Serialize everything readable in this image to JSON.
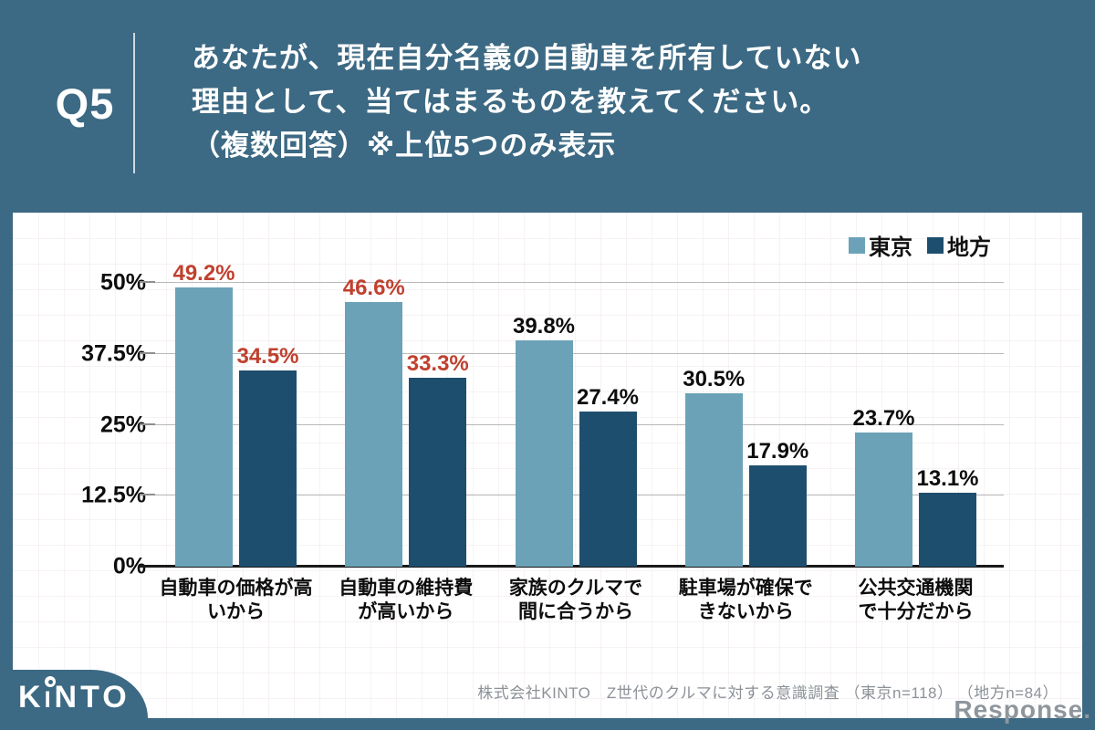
{
  "header": {
    "question_number": "Q5",
    "title_lines": [
      "あなたが、現在自分名義の自動車を所有していない",
      "理由として、当てはまるものを教えてください。",
      "（複数回答）※上位5つのみ表示"
    ]
  },
  "chart_data": {
    "type": "bar",
    "title": "",
    "categories": [
      "自動車の価格が高\nいから",
      "自動車の維持費\nが高いから",
      "家族のクルマで\n間に合うから",
      "駐車場が確保で\nきないから",
      "公共交通機関\nで十分だから"
    ],
    "series": [
      {
        "name": "東京",
        "color": "#6ba2b8",
        "values": [
          49.2,
          46.6,
          39.8,
          30.5,
          23.7
        ]
      },
      {
        "name": "地方",
        "color": "#1e4e6e",
        "values": [
          34.5,
          33.3,
          27.4,
          17.9,
          13.1
        ]
      }
    ],
    "ylim": [
      0,
      50
    ],
    "yticks": [
      "0%",
      "12.5%",
      "25%",
      "37.5%",
      "50%"
    ],
    "grid": true,
    "legend_position": "top-right",
    "highlight_groups": [
      0,
      1
    ],
    "highlight_label_color": "#c0402e",
    "unit": "%"
  },
  "footer": {
    "source": "株式会社KINTO　Z世代のクルマに対する意識調査 （東京n=118） （地方n=84）",
    "logo_text": "KINTO",
    "watermark": "Response."
  },
  "colors": {
    "background": "#3c6983",
    "card": "#ffffff",
    "tokyo_bar": "#6ba2b8",
    "chihou_bar": "#1e4e6e",
    "highlight_label": "#c0402e",
    "gridline": "#b9b9b9",
    "axis": "#1a1a1a",
    "source_text": "#8c9297"
  }
}
